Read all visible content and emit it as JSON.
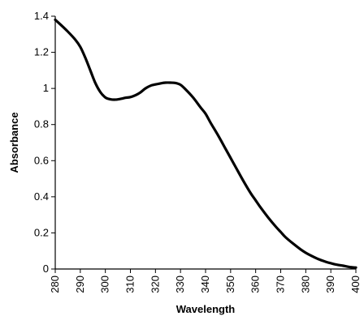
{
  "chart_data": {
    "type": "line",
    "title": "",
    "xlabel": "Wavelength",
    "ylabel": "Absorbance",
    "xlim": [
      280,
      400
    ],
    "ylim": [
      0,
      1.4
    ],
    "grid": false,
    "legend": "none",
    "x_ticks": [
      "280",
      "290",
      "300",
      "310",
      "320",
      "330",
      "340",
      "350",
      "360",
      "370",
      "380",
      "390",
      "400"
    ],
    "y_ticks": [
      "0",
      "0.2",
      "0.4",
      "0.6",
      "0.8",
      "1",
      "1.2",
      "1.4"
    ],
    "colors": {
      "line": "#000000",
      "axis": "#000000",
      "background": "#ffffff"
    },
    "series": [
      {
        "x": [
          280,
          282,
          285,
          288,
          290,
          292,
          294,
          296,
          298,
          300,
          302,
          304,
          306,
          308,
          310,
          312,
          314,
          316,
          318,
          320,
          322,
          324,
          326,
          328,
          330,
          332,
          335,
          338,
          340,
          342,
          345,
          348,
          350,
          352,
          355,
          358,
          360,
          362,
          365,
          368,
          370,
          372,
          375,
          378,
          380,
          382,
          385,
          388,
          390,
          392,
          395,
          398,
          400
        ],
        "y": [
          1.38,
          1.355,
          1.315,
          1.27,
          1.23,
          1.17,
          1.1,
          1.03,
          0.98,
          0.95,
          0.94,
          0.938,
          0.942,
          0.948,
          0.952,
          0.962,
          0.978,
          1.0,
          1.015,
          1.022,
          1.028,
          1.032,
          1.032,
          1.03,
          1.02,
          0.995,
          0.95,
          0.895,
          0.86,
          0.81,
          0.74,
          0.665,
          0.615,
          0.565,
          0.49,
          0.42,
          0.38,
          0.34,
          0.285,
          0.235,
          0.205,
          0.175,
          0.14,
          0.108,
          0.09,
          0.075,
          0.055,
          0.04,
          0.032,
          0.025,
          0.018,
          0.01,
          0.008
        ]
      }
    ]
  }
}
